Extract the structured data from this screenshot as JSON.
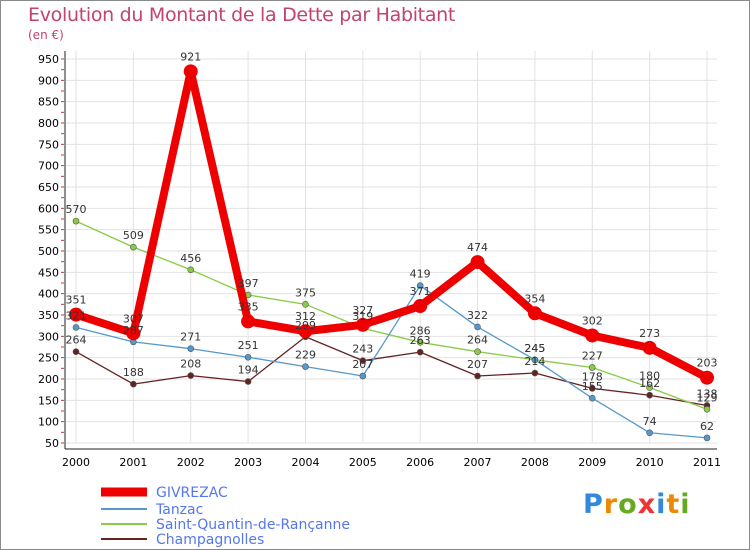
{
  "title": "Evolution du Montant de la Dette par Habitant",
  "unit": "(en €)",
  "logo": "Proxiti",
  "chart_data": {
    "type": "line",
    "title": "Evolution du Montant de la Dette par Habitant",
    "ylabel": "(en €)",
    "xlabel": "",
    "categories": [
      "2000",
      "2001",
      "2002",
      "2003",
      "2004",
      "2005",
      "2006",
      "2007",
      "2008",
      "2009",
      "2010",
      "2011"
    ],
    "yticks": [
      50,
      100,
      150,
      200,
      250,
      300,
      350,
      400,
      450,
      500,
      550,
      600,
      650,
      700,
      750,
      800,
      850,
      900,
      950
    ],
    "ylim": [
      50,
      950
    ],
    "grid": true,
    "legend": "bottom-left",
    "series": [
      {
        "name": "GIVREZAC",
        "color": "#ee0000",
        "values": [
          351,
          307,
          921,
          335,
          312,
          327,
          371,
          474,
          354,
          302,
          273,
          203
        ]
      },
      {
        "name": "Tanzac",
        "color": "#5599cc",
        "values": [
          321,
          287,
          271,
          251,
          229,
          207,
          419,
          322,
          245,
          155,
          74,
          62
        ]
      },
      {
        "name": "Saint-Quantin-de-Rançanne",
        "color": "#88cc44",
        "values": [
          570,
          509,
          456,
          397,
          375,
          319,
          286,
          264,
          245,
          227,
          180,
          129
        ]
      },
      {
        "name": "Champagnolles",
        "color": "#662222",
        "values": [
          264,
          188,
          208,
          194,
          299,
          243,
          263,
          207,
          214,
          178,
          162,
          138
        ]
      }
    ]
  }
}
